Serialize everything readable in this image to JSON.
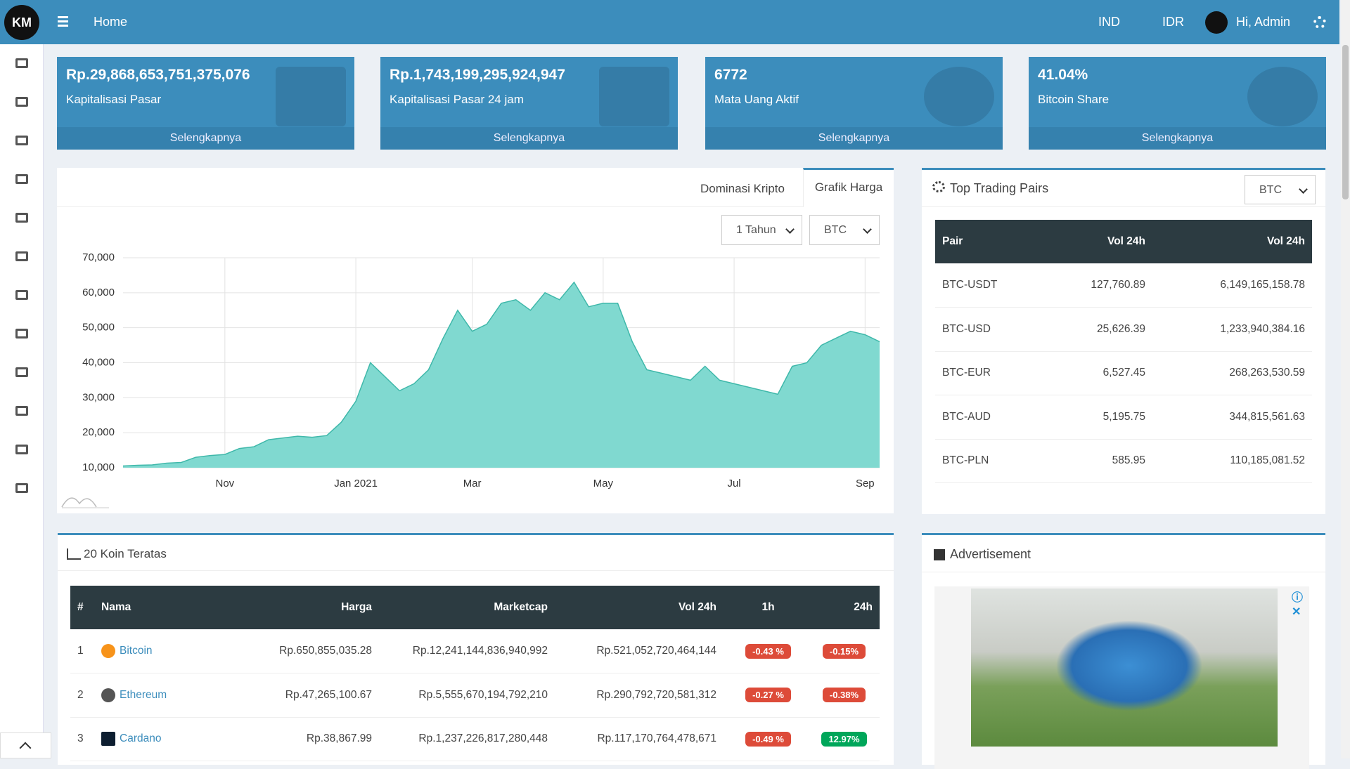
{
  "header": {
    "nav": "Home",
    "language": "IND",
    "currency": "IDR",
    "user": "Hi, Admin"
  },
  "stats": [
    {
      "value": "Rp.29,868,653,751,375,076",
      "label": "Kapitalisasi Pasar",
      "link": "Selengkapnya"
    },
    {
      "value": "Rp.1,743,199,295,924,947",
      "label": "Kapitalisasi Pasar 24 jam",
      "link": "Selengkapnya"
    },
    {
      "value": "6772",
      "label": "Mata Uang Aktif",
      "link": "Selengkapnya"
    },
    {
      "value": "41.04%",
      "label": "Bitcoin Share",
      "link": "Selengkapnya"
    }
  ],
  "chart_tabs": [
    "Dominasi Kripto",
    "Grafik Harga"
  ],
  "chart_filters": [
    "1 Tahun",
    "BTC"
  ],
  "chart_data": {
    "type": "area",
    "color": "#80d9d0",
    "line_color": "#3fb8aa",
    "grid": true,
    "categories": [
      null,
      null,
      null,
      null,
      null,
      null,
      null,
      "Nov",
      null,
      null,
      null,
      null,
      null,
      null,
      null,
      null,
      "Jan 2021",
      null,
      null,
      null,
      null,
      null,
      null,
      null,
      "Mar",
      null,
      null,
      null,
      null,
      null,
      null,
      null,
      null,
      "May",
      null,
      null,
      null,
      null,
      null,
      null,
      null,
      null,
      "Jul",
      null,
      null,
      null,
      null,
      null,
      null,
      null,
      null,
      "Sep",
      null
    ],
    "values": [
      10500,
      10700,
      10800,
      11300,
      11500,
      13000,
      13500,
      13800,
      15500,
      16000,
      18000,
      18500,
      19000,
      18700,
      19200,
      23000,
      29000,
      40000,
      36000,
      32000,
      34000,
      38000,
      47000,
      55000,
      49000,
      51000,
      57000,
      58000,
      55000,
      60000,
      58000,
      63000,
      56000,
      57000,
      57000,
      46000,
      38000,
      37000,
      36000,
      35000,
      39000,
      35000,
      34000,
      33000,
      32000,
      31000,
      39000,
      40000,
      45000,
      47000,
      49000,
      48000,
      46000
    ],
    "ylim": [
      10000,
      70000
    ],
    "yticks": [
      {
        "value": 10000,
        "label": "10,000"
      },
      {
        "value": 20000,
        "label": "20,000"
      },
      {
        "value": 30000,
        "label": "30,000"
      },
      {
        "value": 40000,
        "label": "40,000"
      },
      {
        "value": 50000,
        "label": "50,000"
      },
      {
        "value": 60000,
        "label": "60,000"
      },
      {
        "value": 70000,
        "label": "70,000"
      }
    ]
  },
  "trading_pairs": {
    "title": "Top Trading Pairs",
    "filter": "BTC",
    "columns": [
      "Pair",
      "Vol 24h",
      "Vol 24h"
    ],
    "rows": [
      [
        "BTC-USDT",
        "127,760.89",
        "6,149,165,158.78"
      ],
      [
        "BTC-USD",
        "25,626.39",
        "1,233,940,384.16"
      ],
      [
        "BTC-EUR",
        "6,527.45",
        "268,263,530.59"
      ],
      [
        "BTC-AUD",
        "5,195.75",
        "344,815,561.63"
      ],
      [
        "BTC-PLN",
        "585.95",
        "110,185,081.52"
      ]
    ]
  },
  "top_coins": {
    "title": "20 Koin Teratas",
    "columns": [
      "#",
      "Nama",
      "Harga",
      "Marketcap",
      "Vol 24h",
      "1h",
      "24h"
    ],
    "rows": [
      [
        "1",
        "Bitcoin",
        "Rp.650,855,035.28",
        "Rp.12,241,144,836,940,992",
        "Rp.521,052,720,464,144",
        "-0.43 %",
        "-0.15%"
      ],
      [
        "2",
        "Ethereum",
        "Rp.47,265,100.67",
        "Rp.5,555,670,194,792,210",
        "Rp.290,792,720,581,312",
        "-0.27 %",
        "-0.38%"
      ],
      [
        "3",
        "Cardano",
        "Rp.38,867.99",
        "Rp.1,237,226,817,280,448",
        "Rp.117,170,764,478,671",
        "-0.49 %",
        "12.97%"
      ]
    ]
  },
  "advertisement": {
    "title": "Advertisement"
  }
}
